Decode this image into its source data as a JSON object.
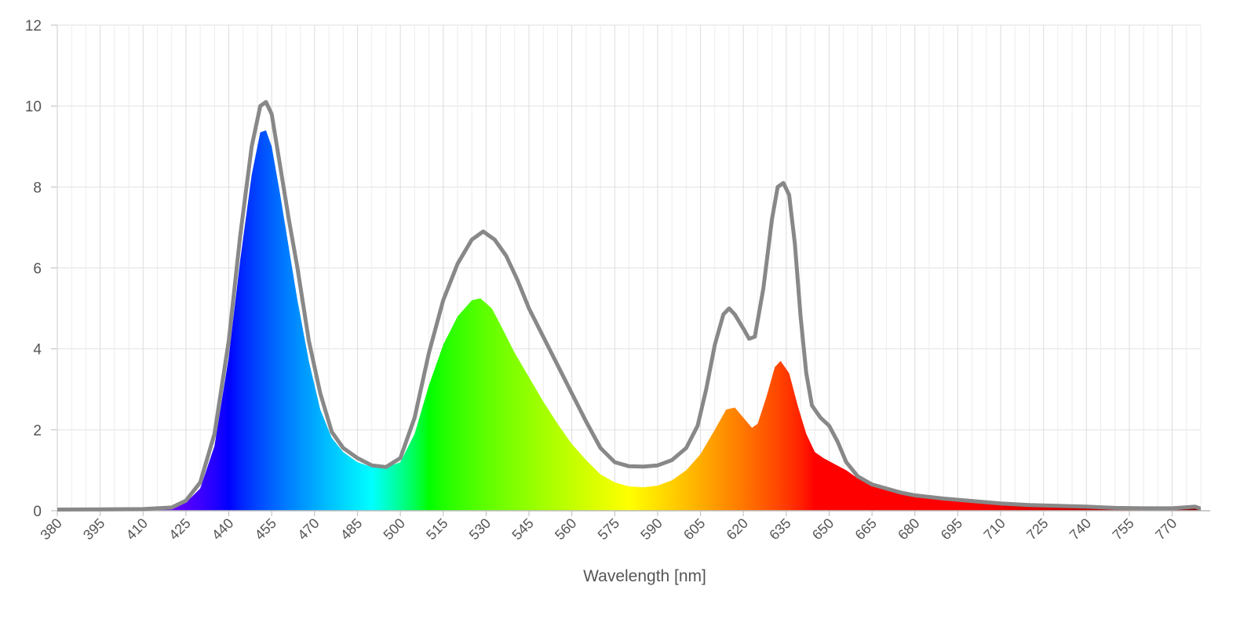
{
  "chart_data": {
    "type": "area",
    "title": "",
    "xlabel": "Wavelength [nm]",
    "ylabel": "",
    "xlim": [
      380,
      780
    ],
    "ylim": [
      0,
      12
    ],
    "grid": true,
    "x_ticks": [
      380,
      395,
      410,
      425,
      440,
      455,
      470,
      485,
      500,
      515,
      530,
      545,
      560,
      575,
      590,
      605,
      620,
      635,
      650,
      665,
      680,
      695,
      710,
      725,
      740,
      755,
      770
    ],
    "y_ticks": [
      0,
      2,
      4,
      6,
      8,
      10,
      12
    ],
    "series": [
      {
        "render": "spectral-fill",
        "points": [
          [
            380,
            0.03
          ],
          [
            395,
            0.03
          ],
          [
            410,
            0.04
          ],
          [
            418,
            0.06
          ],
          [
            425,
            0.2
          ],
          [
            430,
            0.55
          ],
          [
            435,
            1.6
          ],
          [
            440,
            3.8
          ],
          [
            444,
            6.2
          ],
          [
            448,
            8.3
          ],
          [
            451,
            9.35
          ],
          [
            453,
            9.4
          ],
          [
            455,
            9.0
          ],
          [
            458,
            7.8
          ],
          [
            461,
            6.5
          ],
          [
            464,
            5.2
          ],
          [
            468,
            3.7
          ],
          [
            472,
            2.5
          ],
          [
            476,
            1.8
          ],
          [
            480,
            1.45
          ],
          [
            485,
            1.2
          ],
          [
            490,
            1.08
          ],
          [
            495,
            1.07
          ],
          [
            500,
            1.2
          ],
          [
            505,
            1.9
          ],
          [
            510,
            3.1
          ],
          [
            515,
            4.1
          ],
          [
            520,
            4.8
          ],
          [
            525,
            5.2
          ],
          [
            528,
            5.25
          ],
          [
            532,
            5.0
          ],
          [
            535,
            4.6
          ],
          [
            540,
            3.9
          ],
          [
            545,
            3.3
          ],
          [
            550,
            2.7
          ],
          [
            555,
            2.15
          ],
          [
            560,
            1.65
          ],
          [
            565,
            1.25
          ],
          [
            570,
            0.9
          ],
          [
            575,
            0.7
          ],
          [
            580,
            0.6
          ],
          [
            585,
            0.58
          ],
          [
            590,
            0.62
          ],
          [
            595,
            0.75
          ],
          [
            600,
            1.0
          ],
          [
            605,
            1.4
          ],
          [
            610,
            2.0
          ],
          [
            614,
            2.5
          ],
          [
            617,
            2.55
          ],
          [
            620,
            2.3
          ],
          [
            623,
            2.05
          ],
          [
            625,
            2.15
          ],
          [
            628,
            2.8
          ],
          [
            631,
            3.55
          ],
          [
            633,
            3.7
          ],
          [
            636,
            3.4
          ],
          [
            639,
            2.6
          ],
          [
            642,
            1.9
          ],
          [
            645,
            1.45
          ],
          [
            648,
            1.3
          ],
          [
            652,
            1.15
          ],
          [
            656,
            1.0
          ],
          [
            660,
            0.8
          ],
          [
            665,
            0.65
          ],
          [
            670,
            0.55
          ],
          [
            675,
            0.45
          ],
          [
            680,
            0.38
          ],
          [
            690,
            0.3
          ],
          [
            700,
            0.24
          ],
          [
            710,
            0.18
          ],
          [
            720,
            0.14
          ],
          [
            730,
            0.12
          ],
          [
            740,
            0.1
          ],
          [
            750,
            0.07
          ],
          [
            760,
            0.06
          ],
          [
            770,
            0.06
          ],
          [
            776,
            0.09
          ],
          [
            778,
            0.1
          ],
          [
            780,
            0.05
          ]
        ]
      },
      {
        "render": "line",
        "color": "#888888",
        "points": [
          [
            380,
            0.03
          ],
          [
            410,
            0.04
          ],
          [
            420,
            0.08
          ],
          [
            425,
            0.25
          ],
          [
            430,
            0.7
          ],
          [
            435,
            1.9
          ],
          [
            440,
            4.2
          ],
          [
            444,
            6.8
          ],
          [
            448,
            9.0
          ],
          [
            451,
            10.0
          ],
          [
            453,
            10.1
          ],
          [
            455,
            9.8
          ],
          [
            458,
            8.5
          ],
          [
            461,
            7.2
          ],
          [
            464,
            6.0
          ],
          [
            468,
            4.2
          ],
          [
            472,
            2.9
          ],
          [
            476,
            1.95
          ],
          [
            480,
            1.55
          ],
          [
            485,
            1.3
          ],
          [
            490,
            1.12
          ],
          [
            495,
            1.08
          ],
          [
            500,
            1.3
          ],
          [
            505,
            2.3
          ],
          [
            510,
            3.9
          ],
          [
            515,
            5.2
          ],
          [
            520,
            6.1
          ],
          [
            525,
            6.7
          ],
          [
            529,
            6.9
          ],
          [
            533,
            6.7
          ],
          [
            537,
            6.3
          ],
          [
            541,
            5.7
          ],
          [
            545,
            5.0
          ],
          [
            550,
            4.3
          ],
          [
            555,
            3.6
          ],
          [
            560,
            2.9
          ],
          [
            565,
            2.2
          ],
          [
            570,
            1.55
          ],
          [
            575,
            1.2
          ],
          [
            580,
            1.1
          ],
          [
            585,
            1.09
          ],
          [
            590,
            1.12
          ],
          [
            595,
            1.25
          ],
          [
            600,
            1.55
          ],
          [
            604,
            2.1
          ],
          [
            607,
            3.0
          ],
          [
            610,
            4.1
          ],
          [
            613,
            4.85
          ],
          [
            615,
            5.0
          ],
          [
            617,
            4.85
          ],
          [
            620,
            4.5
          ],
          [
            622,
            4.25
          ],
          [
            624,
            4.3
          ],
          [
            627,
            5.5
          ],
          [
            630,
            7.2
          ],
          [
            632,
            8.0
          ],
          [
            634,
            8.1
          ],
          [
            636,
            7.8
          ],
          [
            638,
            6.6
          ],
          [
            640,
            4.8
          ],
          [
            642,
            3.4
          ],
          [
            644,
            2.6
          ],
          [
            647,
            2.3
          ],
          [
            650,
            2.1
          ],
          [
            653,
            1.7
          ],
          [
            656,
            1.2
          ],
          [
            660,
            0.85
          ],
          [
            665,
            0.65
          ],
          [
            670,
            0.55
          ],
          [
            675,
            0.45
          ],
          [
            680,
            0.38
          ],
          [
            690,
            0.3
          ],
          [
            700,
            0.24
          ],
          [
            710,
            0.18
          ],
          [
            720,
            0.14
          ],
          [
            730,
            0.12
          ],
          [
            740,
            0.1
          ],
          [
            750,
            0.07
          ],
          [
            760,
            0.06
          ],
          [
            770,
            0.06
          ],
          [
            776,
            0.09
          ],
          [
            778,
            0.1
          ],
          [
            780,
            0.05
          ]
        ]
      }
    ]
  }
}
